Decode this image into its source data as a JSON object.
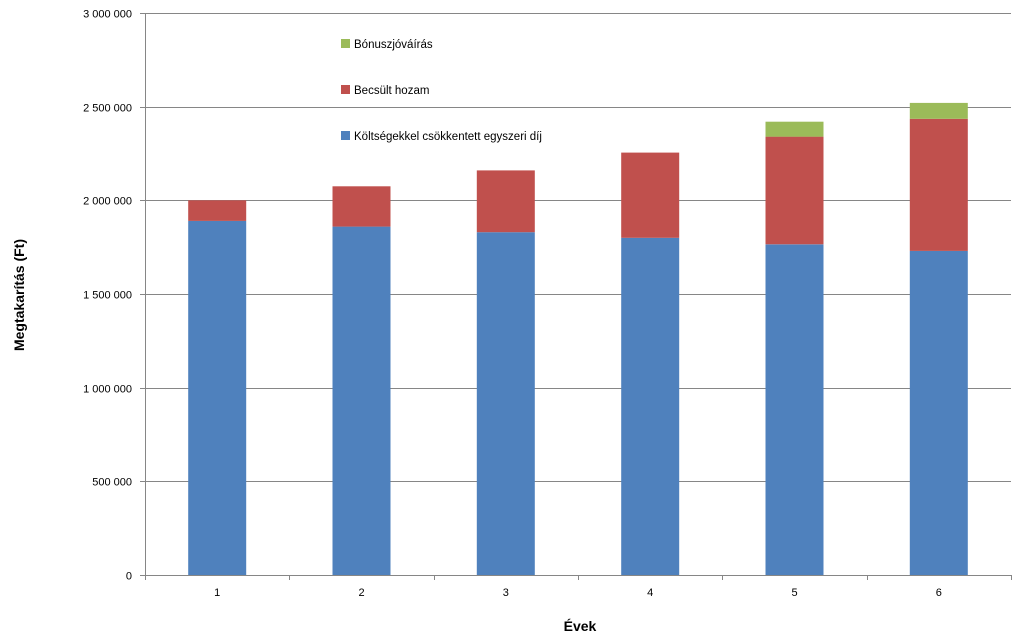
{
  "chart_data": {
    "type": "bar",
    "stacked": true,
    "title": "",
    "xlabel": "Évek",
    "ylabel": "Megtakarítás (Ft)",
    "categories": [
      "1",
      "2",
      "3",
      "4",
      "5",
      "6"
    ],
    "ylim": [
      0,
      3000000
    ],
    "yticks": [
      0,
      500000,
      1000000,
      1500000,
      2000000,
      2500000,
      3000000
    ],
    "ytick_labels": [
      "0",
      "500 000",
      "1 000 000",
      "1 500 000",
      "2 000 000",
      "2 500 000",
      "3 000 000"
    ],
    "grid": true,
    "legend_position": "top-left, inside plot",
    "series": [
      {
        "name": "Költségekkel csökkentett egyszeri díj",
        "color": "#4f81bd",
        "values": [
          1890000,
          1860000,
          1830000,
          1800000,
          1765000,
          1730000
        ]
      },
      {
        "name": "Becsült hozam",
        "color": "#c0504d",
        "values": [
          110000,
          215000,
          330000,
          455000,
          575000,
          705000
        ]
      },
      {
        "name": "Bónuszjóváírás",
        "color": "#9bbb59",
        "values": [
          0,
          0,
          0,
          0,
          80000,
          85000
        ]
      }
    ],
    "legend_order": [
      2,
      1,
      0
    ]
  }
}
